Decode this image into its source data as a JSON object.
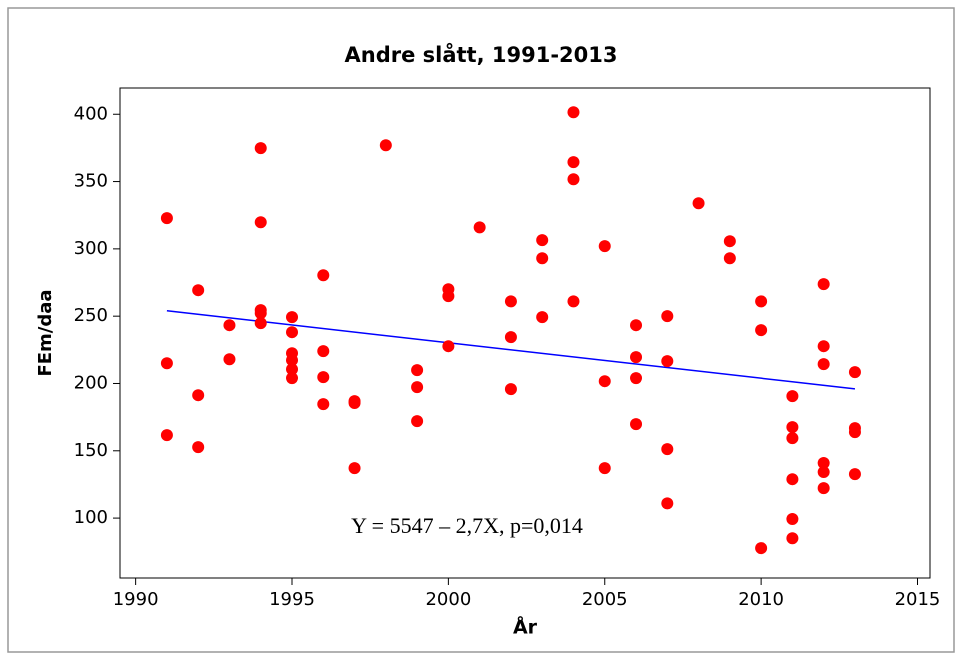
{
  "chart_data": {
    "type": "scatter",
    "title": "Andre slått, 1991-2013",
    "x_label": "År",
    "y_label": "FEm/daa",
    "x": [
      1991,
      1991,
      1991,
      1992,
      1992,
      1992,
      1993,
      1993,
      1994,
      1994,
      1994,
      1994,
      1994,
      1995,
      1995,
      1995,
      1995,
      1995,
      1995,
      1996,
      1996,
      1996,
      1996,
      1997,
      1997,
      1997,
      1998,
      1999,
      1999,
      1999,
      2000,
      2000,
      2000,
      2001,
      2002,
      2002,
      2002,
      2003,
      2003,
      2003,
      2004,
      2004,
      2004,
      2004,
      2005,
      2005,
      2005,
      2006,
      2006,
      2006,
      2006,
      2007,
      2007,
      2007,
      2007,
      2008,
      2009,
      2009,
      2010,
      2010,
      2010,
      2011,
      2011,
      2011,
      2011,
      2011,
      2011,
      2012,
      2012,
      2012,
      2012,
      2012,
      2012,
      2013,
      2013,
      2013,
      2013
    ],
    "values": [
      322.8,
      215,
      161.6,
      269.3,
      191.3,
      152.7,
      243.3,
      218,
      374.8,
      319.8,
      254.5,
      252.2,
      244.8,
      249.3,
      238.1,
      222.5,
      217.3,
      210.6,
      204,
      280.4,
      224,
      204.7,
      184.7,
      186.9,
      185.5,
      137.1,
      377,
      209.9,
      197.3,
      172,
      270,
      264.9,
      227.7,
      316,
      261,
      234.4,
      195.8,
      306.5,
      293,
      249.3,
      401.5,
      364.4,
      351.7,
      261,
      302,
      201.7,
      137.1,
      243.3,
      219.6,
      204,
      169.8,
      250,
      216.6,
      151.2,
      110.9,
      333.9,
      305.7,
      293,
      261,
      239.6,
      77.7,
      190.6,
      167.6,
      159.4,
      128.9,
      99.3,
      85,
      273.8,
      227.7,
      214.4,
      140.9,
      134.2,
      122.3,
      208.4,
      166.8,
      163.9,
      132.7
    ],
    "color": "#ff0000",
    "fit_line": {
      "x": [
        1991,
        2013
      ],
      "y": [
        254,
        196
      ],
      "color": "#0000ff"
    },
    "annotation": "Y = 5547 – 2,7X, p=0,014",
    "xlim": [
      1989.5,
      2015.4
    ],
    "xticks": [
      1990,
      1995,
      2000,
      2005,
      2010,
      2015
    ],
    "ylim": [
      55.5,
      419.5
    ],
    "yticks": [
      100,
      150,
      200,
      250,
      300,
      350,
      400
    ]
  }
}
